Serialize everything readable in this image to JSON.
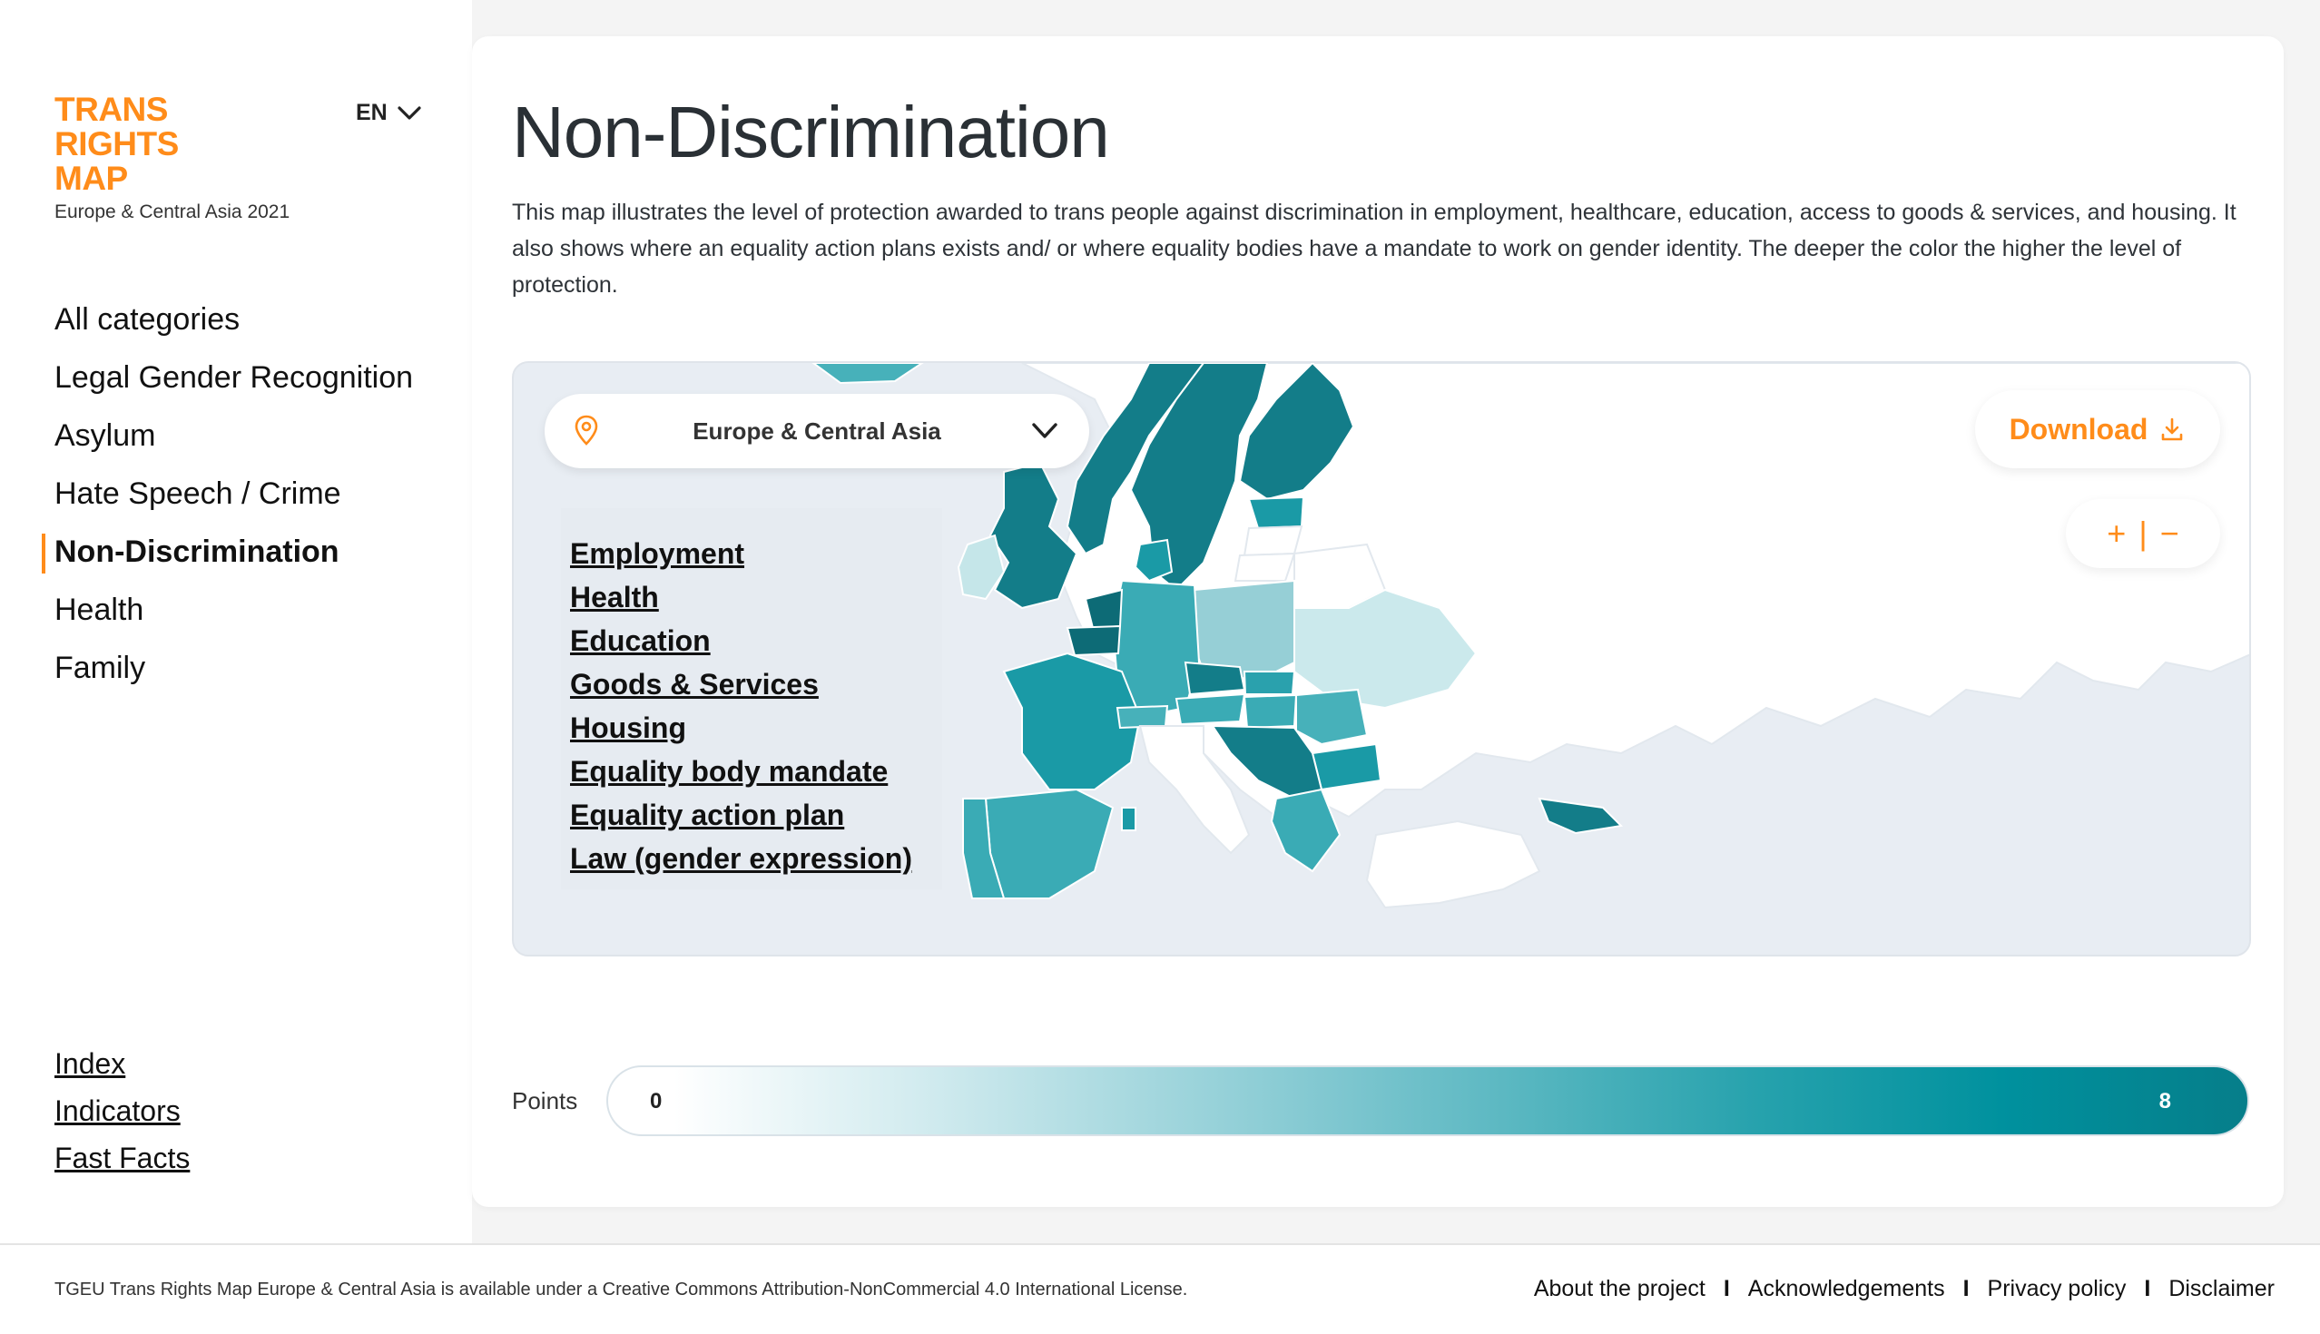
{
  "logo": {
    "line1": "TRANS",
    "line2": "RIGHTS",
    "line3": "MAP",
    "subtitle": "Europe & Central Asia 2021"
  },
  "language": {
    "selected": "EN"
  },
  "nav": {
    "items": [
      {
        "label": "All categories"
      },
      {
        "label": "Legal Gender Recognition"
      },
      {
        "label": "Asylum"
      },
      {
        "label": "Hate Speech / Crime"
      },
      {
        "label": "Non-Discrimination",
        "active": true
      },
      {
        "label": "Health"
      },
      {
        "label": "Family"
      }
    ]
  },
  "secondary_links": {
    "index": "Index",
    "indicators": "Indicators",
    "fast_facts": "Fast Facts"
  },
  "page": {
    "title": "Non-Discrimination",
    "description": "This map illustrates the level of protection awarded to trans people against discrimination in employment, healthcare, education, access to goods & services, and housing. It also shows where an equality action plans exists and/ or where equality bodies have a mandate to work on gender identity. The deeper the color the higher the level of protection."
  },
  "map": {
    "region_select": "Europe & Central Asia",
    "legend": [
      "Employment",
      "Health",
      "Education",
      "Goods & Services",
      "Housing",
      "Equality body mandate",
      "Equality action plan",
      "Law (gender expression)"
    ],
    "download_label": "Download",
    "zoom": {
      "plus": "+",
      "divider": "|",
      "minus": "−"
    }
  },
  "scale": {
    "label": "Points",
    "min": "0",
    "max": "8",
    "colors": {
      "low": "#ffffff",
      "high": "#067e8a"
    }
  },
  "footer": {
    "license": "TGEU Trans Rights Map Europe & Central Asia is available under a Creative Commons Attribution-NonCommercial 4.0 International License.",
    "links": {
      "about": "About the project",
      "acknowledgements": "Acknowledgements",
      "privacy": "Privacy policy",
      "disclaimer": "Disclaimer"
    },
    "separator": "I"
  }
}
